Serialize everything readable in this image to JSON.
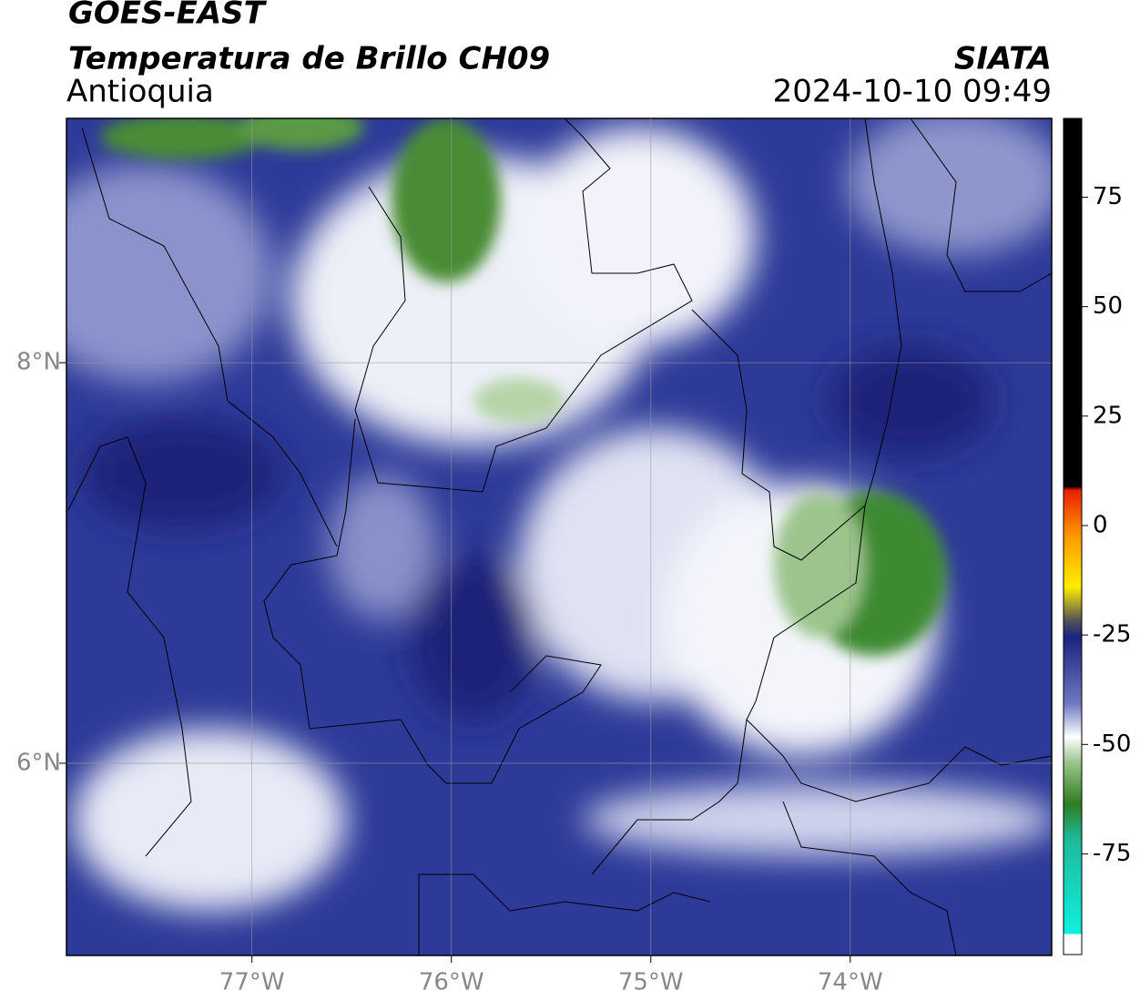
{
  "chart_data": {
    "type": "map",
    "title": "GOES-EAST",
    "subtitle": "Temperatura de Brillo CH09",
    "region": "Antioquia",
    "source": "SIATA",
    "timestamp": "2024-10-10 09:49",
    "xlim": [
      -77.93,
      -72.99
    ],
    "ylim": [
      5.04,
      9.22
    ],
    "xticks": [
      {
        "value": -77,
        "label": "77°W"
      },
      {
        "value": -76,
        "label": "76°W"
      },
      {
        "value": -75,
        "label": "75°W"
      },
      {
        "value": -74,
        "label": "74°W"
      }
    ],
    "yticks": [
      {
        "value": 6,
        "label": "6°N"
      },
      {
        "value": 8,
        "label": "8°N"
      }
    ],
    "grid": true,
    "colorbar": {
      "lim": [
        -98,
        93
      ],
      "ticks": [
        -75,
        -50,
        -25,
        0,
        25,
        50,
        75
      ]
    }
  }
}
